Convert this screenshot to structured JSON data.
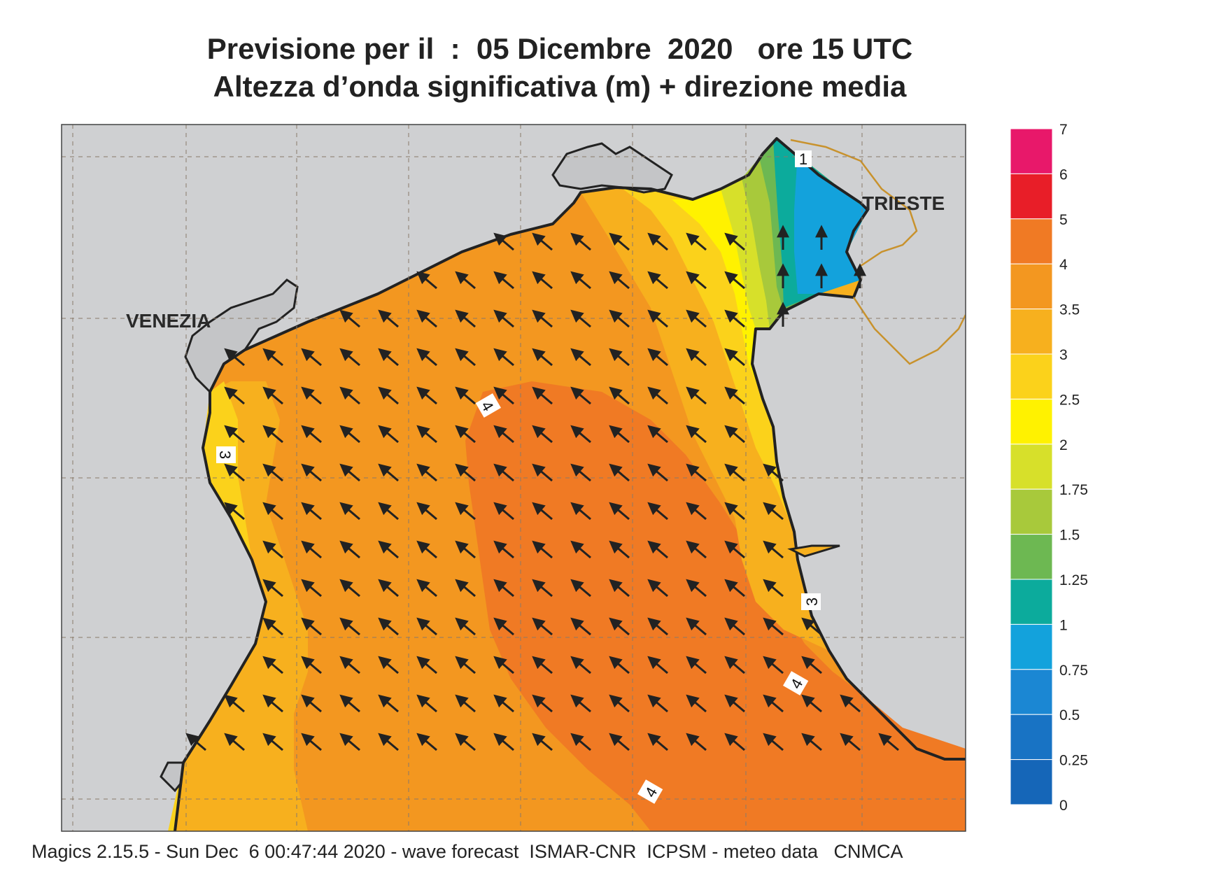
{
  "header": {
    "title_line1": "Previsione per il  :  05 Dicembre  2020   ore 15 UTC",
    "title_line2": "Altezza d’onda significativa (m) + direzione media"
  },
  "map": {
    "city_labels": [
      "VENEZIA",
      "TRIESTE"
    ],
    "contour_labels": [
      "4",
      "3",
      "3",
      "4",
      "4",
      "1"
    ],
    "wave_direction": "arrows pointing north-west, towards the Venetian coast"
  },
  "legend": {
    "entries": [
      {
        "label": "7",
        "color": null
      },
      {
        "label": "6",
        "color": "#e8186a"
      },
      {
        "label": "5",
        "color": "#e81e28"
      },
      {
        "label": "4",
        "color": "#f07a24"
      },
      {
        "label": "3.5",
        "color": "#f39720"
      },
      {
        "label": "3",
        "color": "#f7b01e"
      },
      {
        "label": "2.5",
        "color": "#fbd21b"
      },
      {
        "label": "2",
        "color": "#fff200"
      },
      {
        "label": "1.75",
        "color": "#d7e02a"
      },
      {
        "label": "1.5",
        "color": "#a8c93b"
      },
      {
        "label": "1.25",
        "color": "#6db852"
      },
      {
        "label": "1",
        "color": "#0cab9c"
      },
      {
        "label": "0.75",
        "color": "#13a2dc"
      },
      {
        "label": "0.5",
        "color": "#1b87d3"
      },
      {
        "label": "0.25",
        "color": "#1873c4"
      },
      {
        "label": "0",
        "color": "#1566b8"
      }
    ]
  },
  "colors": {
    "land": "#cfd0d2",
    "coast": "#222222",
    "border": "#c8922d",
    "grid": "#8a7a6a"
  },
  "footer": {
    "text": "Magics 2.15.5 - Sun Dec  6 00:47:44 2020 - wave forecast  ISMAR-CNR  ICPSM - meteo data   CNMCA"
  }
}
